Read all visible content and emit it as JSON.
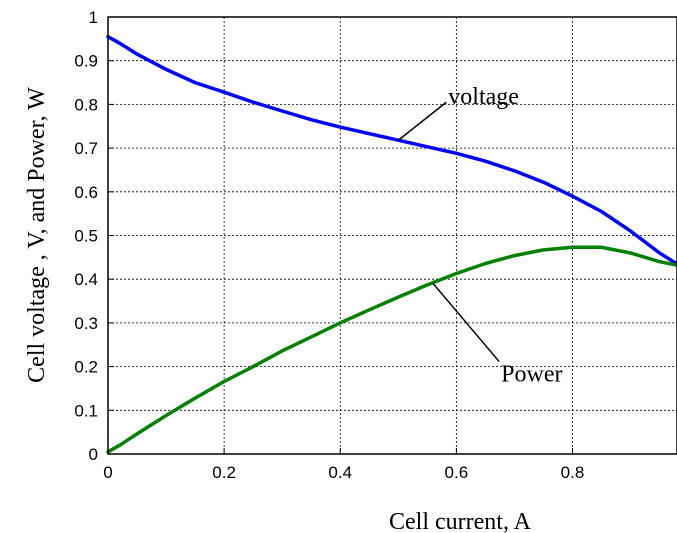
{
  "chart_data": {
    "type": "line",
    "xlabel": "Cell current, A",
    "ylabel": "Cell voltage , V, and Power, W",
    "xlim": [
      0,
      0.98
    ],
    "ylim": [
      0,
      1
    ],
    "x_ticks": [
      "0",
      "0.2",
      "0.4",
      "0.6",
      "0.8"
    ],
    "y_ticks": [
      "0",
      "0.1",
      "0.2",
      "0.3",
      "0.4",
      "0.5",
      "0.6",
      "0.7",
      "0.8",
      "0.9",
      "1"
    ],
    "grid": true,
    "series": [
      {
        "name": "voltage",
        "color": "#0000ff",
        "x": [
          0,
          0.02,
          0.05,
          0.1,
          0.15,
          0.2,
          0.25,
          0.3,
          0.35,
          0.4,
          0.45,
          0.5,
          0.55,
          0.6,
          0.65,
          0.7,
          0.75,
          0.8,
          0.85,
          0.9,
          0.95,
          0.98
        ],
        "y": [
          0.955,
          0.94,
          0.915,
          0.88,
          0.85,
          0.828,
          0.805,
          0.785,
          0.765,
          0.748,
          0.733,
          0.718,
          0.703,
          0.688,
          0.67,
          0.648,
          0.622,
          0.59,
          0.555,
          0.51,
          0.46,
          0.435
        ]
      },
      {
        "name": "Power",
        "color": "#008000",
        "x": [
          0,
          0.02,
          0.05,
          0.1,
          0.15,
          0.2,
          0.25,
          0.3,
          0.35,
          0.4,
          0.45,
          0.5,
          0.55,
          0.6,
          0.65,
          0.7,
          0.75,
          0.8,
          0.85,
          0.9,
          0.95,
          0.98
        ],
        "y": [
          0.005,
          0.02,
          0.046,
          0.088,
          0.128,
          0.166,
          0.2,
          0.236,
          0.268,
          0.3,
          0.33,
          0.359,
          0.387,
          0.413,
          0.436,
          0.454,
          0.467,
          0.473,
          0.473,
          0.46,
          0.44,
          0.432
        ]
      }
    ],
    "annotations": [
      {
        "text": "voltage",
        "points_to": {
          "x": 0.5,
          "y": 0.718
        },
        "placement": "above-right"
      },
      {
        "text": "Power",
        "points_to": {
          "x": 0.56,
          "y": 0.39
        },
        "placement": "below-right"
      }
    ]
  }
}
